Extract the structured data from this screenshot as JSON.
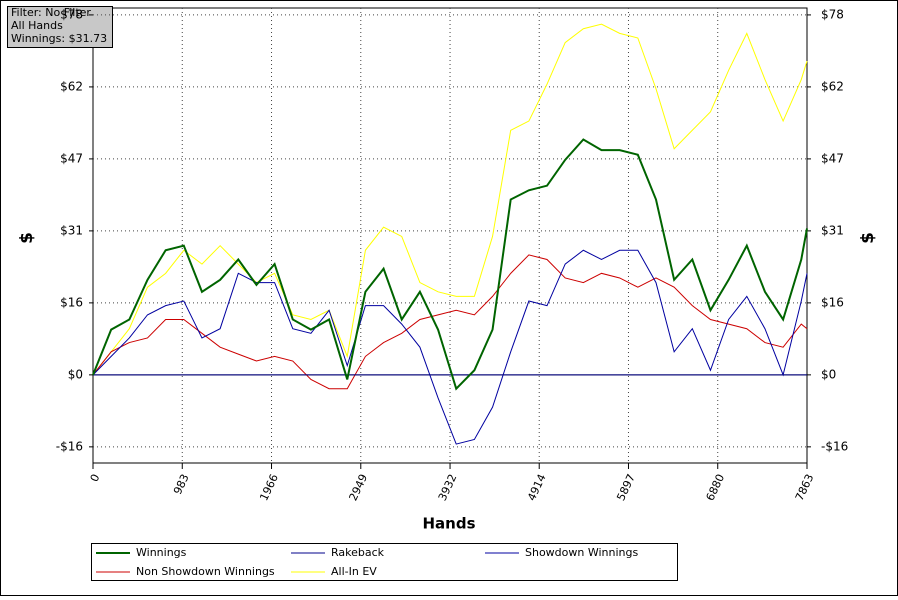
{
  "info": [
    "Filter: No Filter",
    "All Hands",
    "Winnings: $31.73"
  ],
  "chart_data": {
    "type": "line",
    "x_label": "Hands",
    "y_label": "$",
    "y2_label": "$",
    "x": [
      0,
      200,
      400,
      600,
      800,
      1000,
      1200,
      1400,
      1600,
      1800,
      2000,
      2200,
      2400,
      2600,
      2800,
      3000,
      3200,
      3400,
      3600,
      3800,
      4000,
      4200,
      4400,
      4600,
      4800,
      5000,
      5200,
      5400,
      5600,
      5800,
      6000,
      6200,
      6400,
      6600,
      6800,
      7000,
      7200,
      7400,
      7600,
      7800,
      7863
    ],
    "xlim": [
      0,
      7863
    ],
    "xticks": [
      0,
      983,
      1966,
      2949,
      3932,
      4914,
      5897,
      6880,
      7863
    ],
    "ylim": [
      -19.1,
      79.5
    ],
    "yticks": [
      {
        "value": -15.6,
        "label": "-$16"
      },
      {
        "value": 0,
        "label": "$0"
      },
      {
        "value": 15.6,
        "label": "$16"
      },
      {
        "value": 31.2,
        "label": "$31"
      },
      {
        "value": 46.8,
        "label": "$47"
      },
      {
        "value": 62.4,
        "label": "$62"
      },
      {
        "value": 78,
        "label": "$78"
      }
    ],
    "y2lim": [
      -19.1,
      79.5
    ],
    "y2ticks": [
      {
        "value": -15.6,
        "label": "-$16"
      },
      {
        "value": 0,
        "label": "$0"
      },
      {
        "value": 15.6,
        "label": "$16"
      },
      {
        "value": 31.2,
        "label": "$31"
      },
      {
        "value": 46.8,
        "label": "$47"
      },
      {
        "value": 62.4,
        "label": "$62"
      },
      {
        "value": 78,
        "label": "$78"
      }
    ],
    "grid": true,
    "series": [
      {
        "name": "Winnings",
        "color": "#006400",
        "values": [
          0,
          9.8,
          12,
          20.6,
          27,
          28,
          18,
          20.6,
          25,
          19.5,
          24,
          12,
          9.8,
          12,
          -1,
          18,
          23,
          12,
          18,
          9.8,
          -3,
          1,
          9.8,
          38,
          40,
          41,
          46.6,
          51,
          48.7,
          48.7,
          47.7,
          38,
          20.6,
          25,
          14,
          20.6,
          28,
          18,
          12,
          25,
          31.73
        ]
      },
      {
        "name": "Rakeback",
        "color": "#00008b",
        "values": [
          0,
          0,
          0,
          0,
          0,
          0,
          0,
          0,
          0,
          0,
          0,
          0,
          0,
          0,
          0,
          0,
          0,
          0,
          0,
          0,
          0,
          0,
          0,
          0,
          0,
          0,
          0,
          0,
          0,
          0,
          0,
          0,
          0,
          0,
          0,
          0,
          0,
          0,
          0,
          0,
          0
        ]
      },
      {
        "name": "Showdown Winnings",
        "color": "#0000a0",
        "values": [
          0,
          4,
          8,
          13,
          15,
          16,
          8,
          10,
          22,
          20,
          20,
          10,
          9,
          14,
          2,
          15,
          15,
          11,
          6,
          -5,
          -15,
          -14,
          -7,
          5,
          16,
          15,
          24,
          27,
          25,
          27,
          27,
          20,
          5,
          10,
          1,
          12,
          17,
          10,
          0,
          16,
          22
        ]
      },
      {
        "name": "Non Showdown Winnings",
        "color": "#cc0000",
        "values": [
          0,
          5,
          7,
          8,
          12,
          12,
          9,
          6,
          4.5,
          3,
          4,
          3,
          -1,
          -3,
          -3,
          4,
          7,
          9,
          12,
          13,
          14,
          13,
          17,
          22,
          26,
          25,
          21,
          20,
          22,
          21,
          19,
          21,
          19,
          15,
          12,
          11,
          10,
          7,
          6,
          11,
          10
        ]
      },
      {
        "name": "All-In EV",
        "color": "#ffff00",
        "values": [
          0,
          5,
          10,
          19,
          22,
          27,
          24,
          28,
          24,
          20,
          22,
          13,
          12,
          14,
          4,
          27,
          32,
          30,
          20,
          18,
          17,
          17,
          30,
          53,
          55,
          63,
          72,
          75,
          76,
          74,
          73,
          62,
          49,
          53,
          57,
          66,
          74,
          64,
          55,
          64,
          68
        ]
      }
    ]
  }
}
